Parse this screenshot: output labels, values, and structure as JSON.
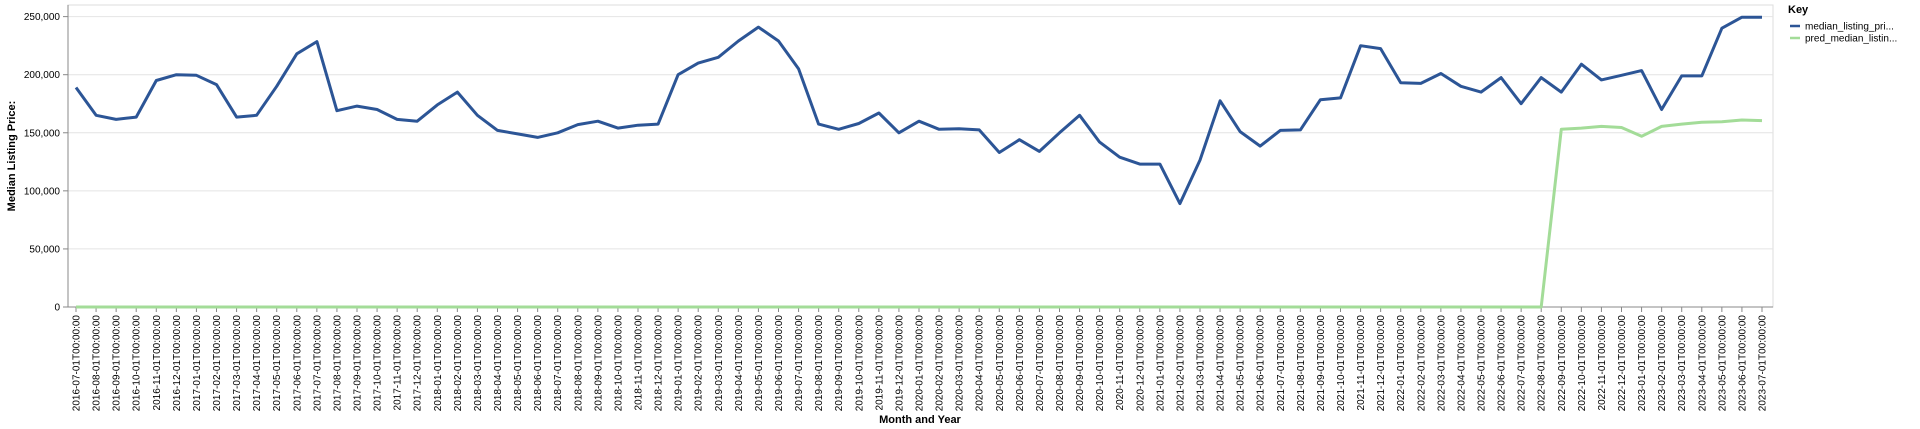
{
  "chart_data": {
    "type": "line",
    "xlabel": "Month and Year",
    "ylabel": "Median Listing Price:",
    "ylim": [
      0,
      260000
    ],
    "yticks": [
      0,
      50000,
      100000,
      150000,
      200000,
      250000
    ],
    "ytick_labels": [
      "0",
      "50,000",
      "100,000",
      "150,000",
      "200,000",
      "250,000"
    ],
    "grid": true,
    "legend": {
      "title": "Key",
      "placement": "top-right"
    },
    "categories": [
      "2016-07-01T00:00:00",
      "2016-08-01T00:00:00",
      "2016-09-01T00:00:00",
      "2016-10-01T00:00:00",
      "2016-11-01T00:00:00",
      "2016-12-01T00:00:00",
      "2017-01-01T00:00:00",
      "2017-02-01T00:00:00",
      "2017-03-01T00:00:00",
      "2017-04-01T00:00:00",
      "2017-05-01T00:00:00",
      "2017-06-01T00:00:00",
      "2017-07-01T00:00:00",
      "2017-08-01T00:00:00",
      "2017-09-01T00:00:00",
      "2017-10-01T00:00:00",
      "2017-11-01T00:00:00",
      "2017-12-01T00:00:00",
      "2018-01-01T00:00:00",
      "2018-02-01T00:00:00",
      "2018-03-01T00:00:00",
      "2018-04-01T00:00:00",
      "2018-05-01T00:00:00",
      "2018-06-01T00:00:00",
      "2018-07-01T00:00:00",
      "2018-08-01T00:00:00",
      "2018-09-01T00:00:00",
      "2018-10-01T00:00:00",
      "2018-11-01T00:00:00",
      "2018-12-01T00:00:00",
      "2019-01-01T00:00:00",
      "2019-02-01T00:00:00",
      "2019-03-01T00:00:00",
      "2019-04-01T00:00:00",
      "2019-05-01T00:00:00",
      "2019-06-01T00:00:00",
      "2019-07-01T00:00:00",
      "2019-08-01T00:00:00",
      "2019-09-01T00:00:00",
      "2019-10-01T00:00:00",
      "2019-11-01T00:00:00",
      "2019-12-01T00:00:00",
      "2020-01-01T00:00:00",
      "2020-02-01T00:00:00",
      "2020-03-01T00:00:00",
      "2020-04-01T00:00:00",
      "2020-05-01T00:00:00",
      "2020-06-01T00:00:00",
      "2020-07-01T00:00:00",
      "2020-08-01T00:00:00",
      "2020-09-01T00:00:00",
      "2020-10-01T00:00:00",
      "2020-11-01T00:00:00",
      "2020-12-01T00:00:00",
      "2021-01-01T00:00:00",
      "2021-02-01T00:00:00",
      "2021-03-01T00:00:00",
      "2021-04-01T00:00:00",
      "2021-05-01T00:00:00",
      "2021-06-01T00:00:00",
      "2021-07-01T00:00:00",
      "2021-08-01T00:00:00",
      "2021-09-01T00:00:00",
      "2021-10-01T00:00:00",
      "2021-11-01T00:00:00",
      "2021-12-01T00:00:00",
      "2022-01-01T00:00:00",
      "2022-02-01T00:00:00",
      "2022-03-01T00:00:00",
      "2022-04-01T00:00:00",
      "2022-05-01T00:00:00",
      "2022-06-01T00:00:00",
      "2022-07-01T00:00:00",
      "2022-08-01T00:00:00",
      "2022-09-01T00:00:00",
      "2022-10-01T00:00:00",
      "2022-11-01T00:00:00",
      "2022-12-01T00:00:00",
      "2023-01-01T00:00:00",
      "2023-02-01T00:00:00",
      "2023-03-01T00:00:00",
      "2023-04-01T00:00:00",
      "2023-05-01T00:00:00",
      "2023-06-01T00:00:00",
      "2023-07-01T00:00:00"
    ],
    "series": [
      {
        "name": "median_listing_pri...",
        "color": "#2c5596",
        "values": [
          189000,
          165000,
          161500,
          163500,
          195000,
          200000,
          199500,
          191500,
          163500,
          165000,
          190000,
          218000,
          228500,
          169000,
          173000,
          170000,
          161500,
          160000,
          174000,
          185000,
          165000,
          152000,
          149000,
          146000,
          150000,
          157000,
          160000,
          154000,
          156500,
          157500,
          200000,
          210000,
          215000,
          229000,
          241000,
          229000,
          205000,
          157500,
          153000,
          158000,
          167000,
          150000,
          160000,
          153000,
          153500,
          152500,
          133000,
          144000,
          134000,
          150000,
          165000,
          142000,
          129000,
          123000,
          123000,
          89000,
          126500,
          177500,
          151000,
          138500,
          152000,
          152500,
          178500,
          180000,
          225000,
          222500,
          193000,
          192500,
          201000,
          190000,
          185000,
          197500,
          175000,
          197500,
          185000,
          209000,
          195500,
          199500,
          203500,
          170000,
          199000,
          199000,
          240000,
          249500,
          249500
        ]
      },
      {
        "name": "pred_median_listin...",
        "color": "#a3dc98",
        "values": [
          0,
          0,
          0,
          0,
          0,
          0,
          0,
          0,
          0,
          0,
          0,
          0,
          0,
          0,
          0,
          0,
          0,
          0,
          0,
          0,
          0,
          0,
          0,
          0,
          0,
          0,
          0,
          0,
          0,
          0,
          0,
          0,
          0,
          0,
          0,
          0,
          0,
          0,
          0,
          0,
          0,
          0,
          0,
          0,
          0,
          0,
          0,
          0,
          0,
          0,
          0,
          0,
          0,
          0,
          0,
          0,
          0,
          0,
          0,
          0,
          0,
          0,
          0,
          0,
          0,
          0,
          0,
          0,
          0,
          0,
          0,
          0,
          0,
          0,
          153000,
          154000,
          155500,
          154500,
          147000,
          155500,
          157500,
          159000,
          159500,
          161000,
          160500
        ]
      }
    ]
  }
}
